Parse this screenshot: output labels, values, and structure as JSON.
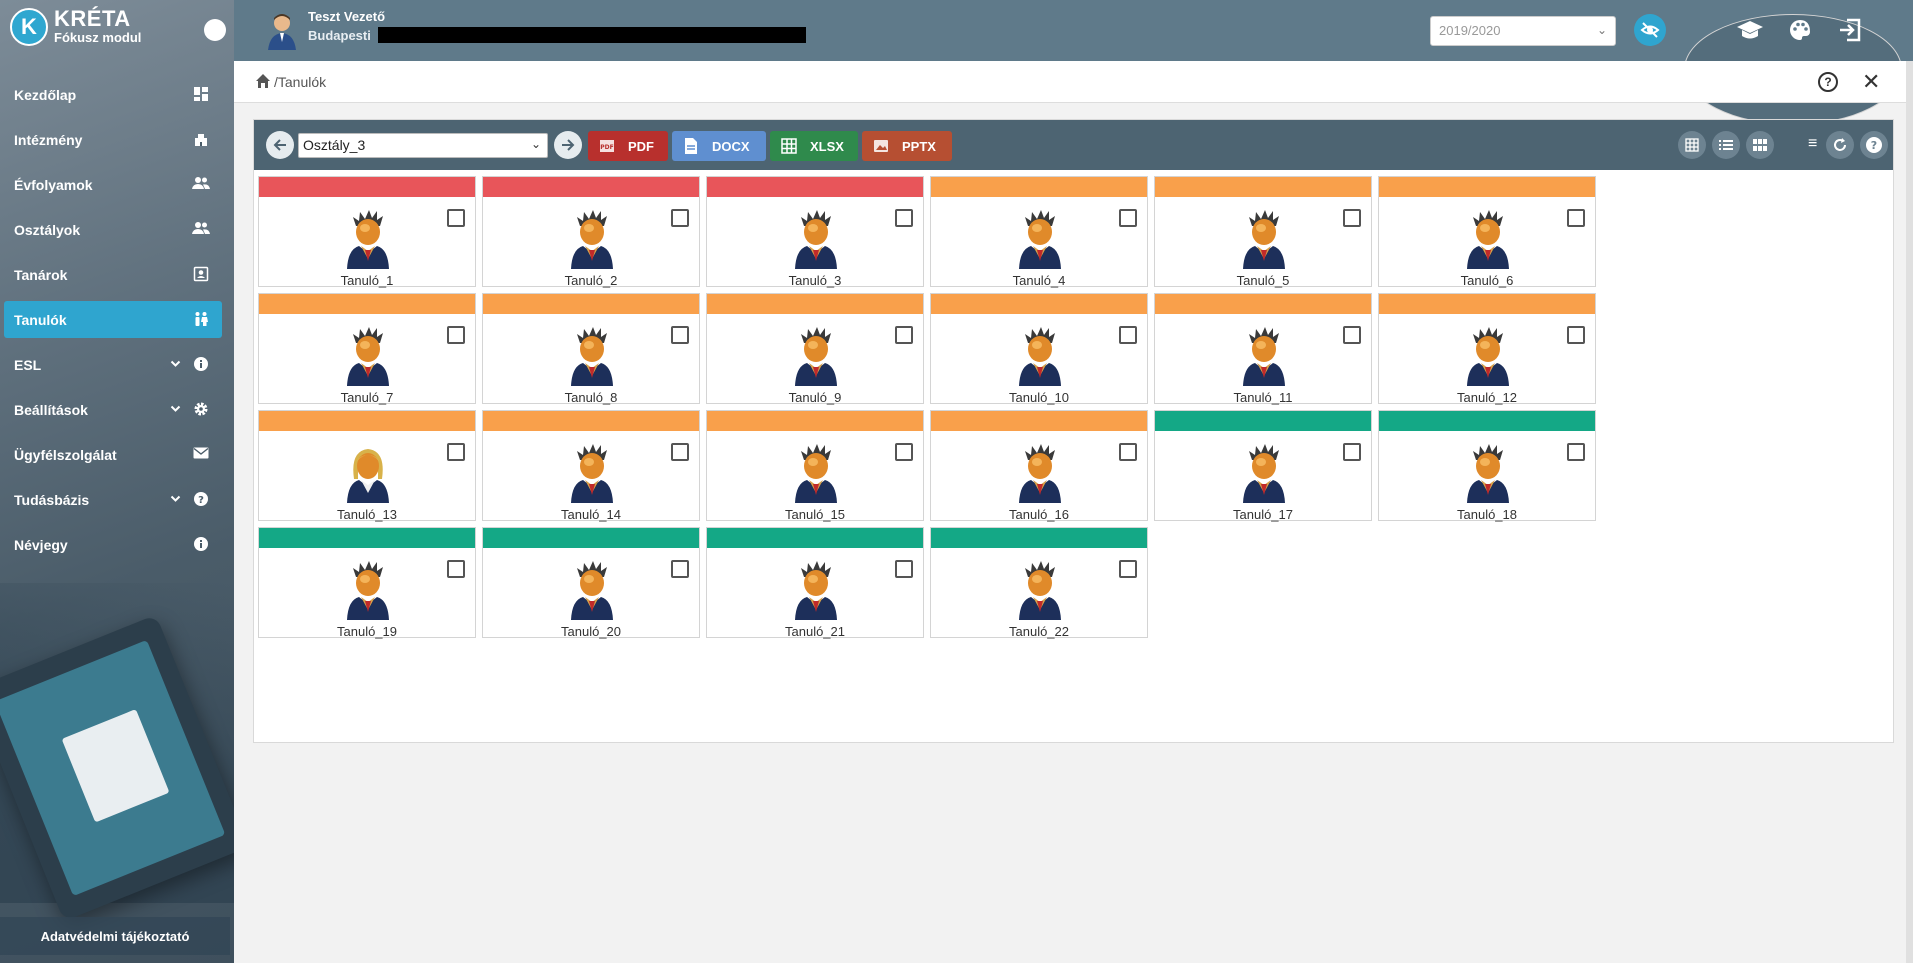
{
  "brand": {
    "title": "KRÉTA",
    "subtitle": "Fókusz modul",
    "logo_letter": "K"
  },
  "sidebar": {
    "items": [
      {
        "label": "Kezdőlap",
        "icon": "dashboard-icon",
        "chevron": false,
        "active": false
      },
      {
        "label": "Intézmény",
        "icon": "building-icon",
        "chevron": false,
        "active": false
      },
      {
        "label": "Évfolyamok",
        "icon": "group-icon",
        "chevron": false,
        "active": false
      },
      {
        "label": "Osztályok",
        "icon": "group-icon",
        "chevron": false,
        "active": false
      },
      {
        "label": "Tanárok",
        "icon": "contact-icon",
        "chevron": false,
        "active": false
      },
      {
        "label": "Tanulók",
        "icon": "children-icon",
        "chevron": false,
        "active": true
      },
      {
        "label": "ESL",
        "icon": "info-icon",
        "chevron": true,
        "active": false
      },
      {
        "label": "Beállítások",
        "icon": "gear-icon",
        "chevron": true,
        "active": false
      },
      {
        "label": "Ügyfélszolgálat",
        "icon": "mail-icon",
        "chevron": false,
        "active": false
      },
      {
        "label": "Tudásbázis",
        "icon": "help-icon",
        "chevron": true,
        "active": false
      },
      {
        "label": "Névjegy",
        "icon": "info-icon",
        "chevron": false,
        "active": false
      }
    ],
    "privacy_label": "Adatvédelmi tájékoztató"
  },
  "header": {
    "user_name": "Teszt Vezető",
    "school": "Budapesti",
    "year": "2019/2020"
  },
  "breadcrumb": {
    "path": "/Tanulók"
  },
  "toolbar": {
    "class_value": "Osztály_3",
    "export_buttons": {
      "pdf": "PDF",
      "docx": "DOCX",
      "xlsx": "XLSX",
      "pptx": "PPTX"
    }
  },
  "colors": {
    "red": "#e8555a",
    "orange": "#f9a04b",
    "green": "#14a886",
    "accent": "#2fa5cf"
  },
  "students": [
    {
      "name": "Tanuló_1",
      "status": "red",
      "gender": "male"
    },
    {
      "name": "Tanuló_2",
      "status": "red",
      "gender": "male"
    },
    {
      "name": "Tanuló_3",
      "status": "red",
      "gender": "male"
    },
    {
      "name": "Tanuló_4",
      "status": "orange",
      "gender": "male"
    },
    {
      "name": "Tanuló_5",
      "status": "orange",
      "gender": "male"
    },
    {
      "name": "Tanuló_6",
      "status": "orange",
      "gender": "male"
    },
    {
      "name": "Tanuló_7",
      "status": "orange",
      "gender": "male"
    },
    {
      "name": "Tanuló_8",
      "status": "orange",
      "gender": "male"
    },
    {
      "name": "Tanuló_9",
      "status": "orange",
      "gender": "male"
    },
    {
      "name": "Tanuló_10",
      "status": "orange",
      "gender": "male"
    },
    {
      "name": "Tanuló_11",
      "status": "orange",
      "gender": "male"
    },
    {
      "name": "Tanuló_12",
      "status": "orange",
      "gender": "male"
    },
    {
      "name": "Tanuló_13",
      "status": "orange",
      "gender": "female"
    },
    {
      "name": "Tanuló_14",
      "status": "orange",
      "gender": "male"
    },
    {
      "name": "Tanuló_15",
      "status": "orange",
      "gender": "male"
    },
    {
      "name": "Tanuló_16",
      "status": "orange",
      "gender": "male"
    },
    {
      "name": "Tanuló_17",
      "status": "green",
      "gender": "male"
    },
    {
      "name": "Tanuló_18",
      "status": "green",
      "gender": "male"
    },
    {
      "name": "Tanuló_19",
      "status": "green",
      "gender": "male"
    },
    {
      "name": "Tanuló_20",
      "status": "green",
      "gender": "male"
    },
    {
      "name": "Tanuló_21",
      "status": "green",
      "gender": "male"
    },
    {
      "name": "Tanuló_22",
      "status": "green",
      "gender": "male"
    }
  ]
}
